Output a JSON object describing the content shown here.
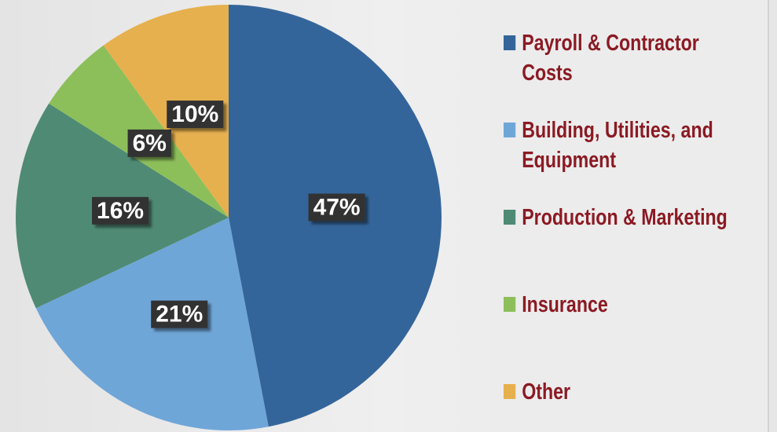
{
  "chart_data": {
    "type": "pie",
    "categories": [
      "Payroll & Contractor Costs",
      "Building, Utilities, and Equipment",
      "Production & Marketing",
      "Insurance",
      "Other"
    ],
    "values": [
      47,
      21,
      16,
      6,
      10
    ],
    "value_labels": [
      "47%",
      "21%",
      "16%",
      "6%",
      "10%"
    ],
    "colors": [
      "#34659a",
      "#6fa6d8",
      "#4f8a74",
      "#8cbf5a",
      "#e6b04e"
    ],
    "legend": "right"
  }
}
